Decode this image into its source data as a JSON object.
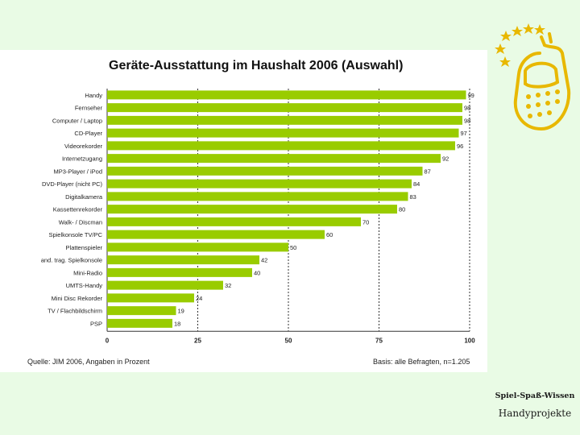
{
  "brand": {
    "line1": "Spiel-Spaß-Wissen",
    "line2": "Handyprojekte"
  },
  "colors": {
    "bar": "#99cc00",
    "band": "#e9fbe5",
    "logo": "#e8b800"
  },
  "logo_icon": "phone-with-stars-icon",
  "chart_data": {
    "type": "bar",
    "orientation": "horizontal",
    "title": "Geräte-Ausstattung im Haushalt 2006 (Auswahl)",
    "categories": [
      "Handy",
      "Fernseher",
      "Computer / Laptop",
      "CD-Player",
      "Videorekorder",
      "Internetzugang",
      "MP3-Player / iPod",
      "DVD-Player (nicht PC)",
      "Digitalkamera",
      "Kassettenrekorder",
      "Walk- / Discman",
      "Spielkonsole TV/PC",
      "Plattenspieler",
      "and. trag. Spielkonsole",
      "Mini-Radio",
      "UMTS-Handy",
      "Mini Disc Rekorder",
      "TV / Flachbildschirm",
      "PSP"
    ],
    "values": [
      99,
      98,
      98,
      97,
      96,
      92,
      87,
      84,
      83,
      80,
      70,
      60,
      50,
      42,
      40,
      32,
      24,
      19,
      18
    ],
    "xlim": [
      0,
      100
    ],
    "xticks": [
      "0",
      "25",
      "50",
      "75",
      "100"
    ],
    "grid": "dashed vertical at 25, 50, 75",
    "source": "Quelle: JIM 2006, Angaben in Prozent",
    "basis": "Basis: alle Befragten, n=1.205"
  }
}
